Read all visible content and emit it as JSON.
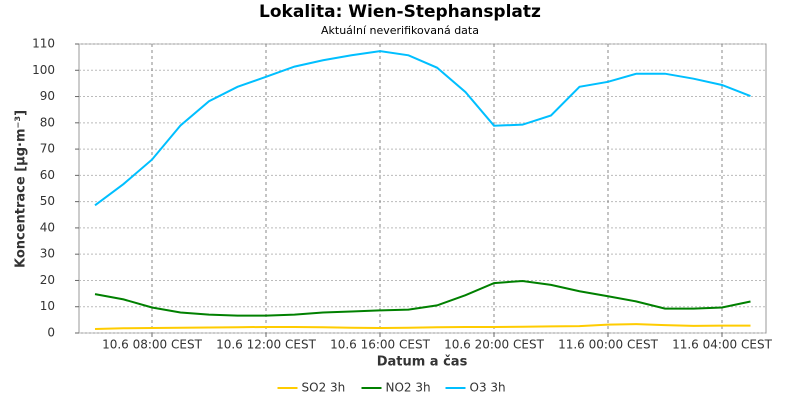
{
  "chart_data": {
    "type": "line",
    "title": "Lokalita: Wien-Stephansplatz",
    "subtitle": "Aktuální neverifikovaná data",
    "x_label": "Datum a čas",
    "y_label": "Koncentrace [µg·m⁻³]",
    "categories": [
      null,
      null,
      "10.6 08:00 CEST",
      null,
      null,
      null,
      "10.6 12:00 CEST",
      null,
      null,
      null,
      "10.6 16:00 CEST",
      null,
      null,
      null,
      "10.6 20:00 CEST",
      null,
      null,
      null,
      "11.6 00:00 CEST",
      null,
      null,
      null,
      "11.6 04:00 CEST",
      null
    ],
    "series": [
      {
        "name": "SO2 3h",
        "color": "#ffcc00",
        "values": [
          1.5,
          1.8,
          1.9,
          2.0,
          2.1,
          2.2,
          2.3,
          2.3,
          2.2,
          2.0,
          1.9,
          2.0,
          2.2,
          2.3,
          2.3,
          2.4,
          2.5,
          2.6,
          3.2,
          3.4,
          3.0,
          2.7,
          2.8,
          2.8
        ]
      },
      {
        "name": "NO2 3h",
        "color": "#008000",
        "values": [
          14.8,
          12.8,
          9.7,
          7.8,
          7.0,
          6.6,
          6.6,
          7.0,
          7.8,
          8.2,
          8.6,
          8.9,
          10.5,
          14.4,
          19.0,
          19.8,
          18.3,
          15.9,
          14.0,
          12.0,
          9.3,
          9.3,
          9.7,
          12.0
        ]
      },
      {
        "name": "O3 3h",
        "color": "#00bfff",
        "values": [
          48.6,
          56.7,
          66.0,
          79.0,
          88.2,
          93.7,
          97.5,
          101.4,
          103.8,
          105.7,
          107.3,
          105.7,
          101.0,
          91.7,
          78.9,
          79.3,
          82.8,
          93.7,
          95.6,
          98.7,
          98.7,
          96.8,
          94.4,
          90.2
        ]
      }
    ],
    "ylim": [
      0,
      110
    ],
    "yticks": [
      0,
      10,
      20,
      30,
      40,
      50,
      60,
      70,
      80,
      90,
      100,
      110
    ],
    "grid": true,
    "legend": "bottom"
  }
}
